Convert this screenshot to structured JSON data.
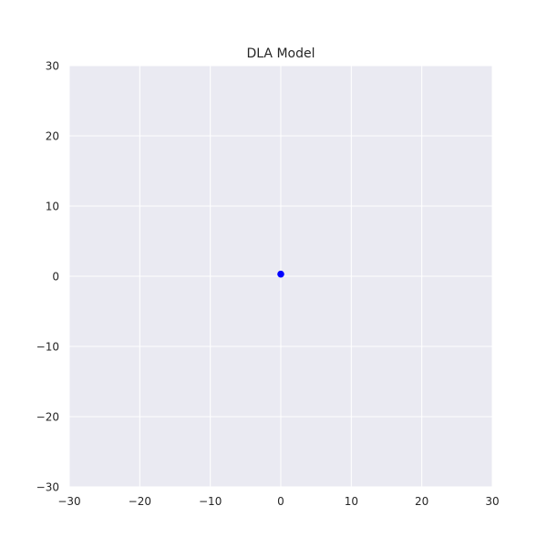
{
  "chart_data": {
    "type": "scatter",
    "title": "DLA Model",
    "xlabel": "",
    "ylabel": "",
    "xlim": [
      -30,
      30
    ],
    "ylim": [
      -30,
      30
    ],
    "xticks": [
      -30,
      -20,
      -10,
      0,
      10,
      20,
      30
    ],
    "yticks": [
      -30,
      -20,
      -10,
      0,
      10,
      20,
      30
    ],
    "x_tick_labels": [
      "−30",
      "−20",
      "−10",
      "0",
      "10",
      "20",
      "30"
    ],
    "y_tick_labels": [
      "−30",
      "−20",
      "−10",
      "0",
      "10",
      "20",
      "30"
    ],
    "grid": true,
    "series": [
      {
        "color": "#0000ff",
        "points": [
          {
            "x": 0,
            "y": 0.3
          }
        ]
      }
    ],
    "colors": {
      "plot_background": "#eaeaf2",
      "grid": "#ffffff",
      "text": "#262626"
    }
  }
}
